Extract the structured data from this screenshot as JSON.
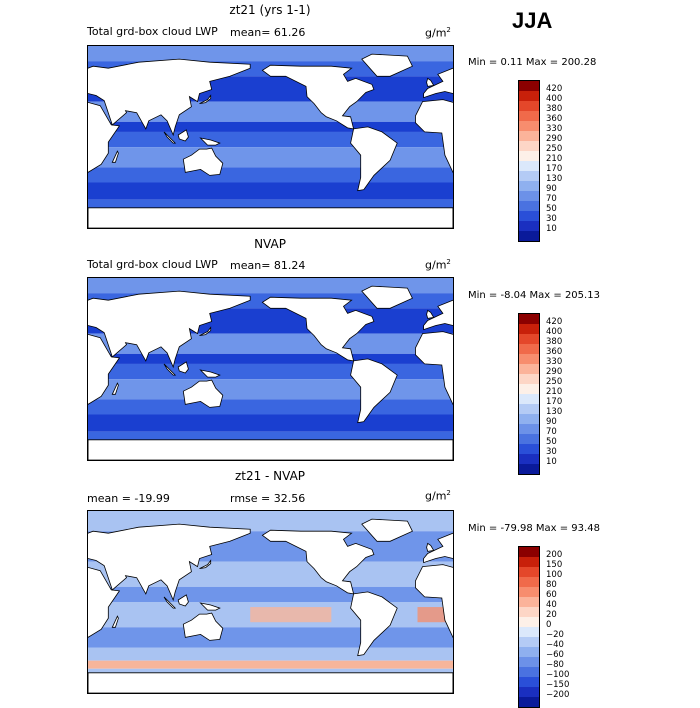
{
  "season": "JJA",
  "panels": [
    {
      "title": "zt21 (yrs 1-1)",
      "subtitle": "Total grd-box cloud LWP",
      "mean_text": "mean=  61.26",
      "units_base": "g/m",
      "units_exp": "2",
      "stats_text": "Min =    0.11 Max = 200.28",
      "colorbar": {
        "labels": [
          "420",
          "400",
          "380",
          "360",
          "330",
          "290",
          "250",
          "210",
          "170",
          "130",
          "90",
          "70",
          "50",
          "30",
          "10"
        ],
        "colors": [
          "#8b0000",
          "#c8200a",
          "#e4472a",
          "#f06a4a",
          "#f78d6e",
          "#fbb39a",
          "#fdd6c6",
          "#fdf0e8",
          "#dbe8fb",
          "#b4cbf5",
          "#8fb0ef",
          "#6c91e8",
          "#4a72e0",
          "#2a4fd8",
          "#1a2fc0",
          "#0a1a9a"
        ],
        "min": 10,
        "max": 420
      },
      "field_mean": 61.26
    },
    {
      "title": "NVAP",
      "subtitle": "Total grd-box cloud LWP",
      "mean_text": "mean=  81.24",
      "units_base": "g/m",
      "units_exp": "2",
      "stats_text": "Min =  -8.04 Max = 205.13",
      "colorbar": {
        "labels": [
          "420",
          "400",
          "380",
          "360",
          "330",
          "290",
          "250",
          "210",
          "170",
          "130",
          "90",
          "70",
          "50",
          "30",
          "10"
        ],
        "colors": [
          "#8b0000",
          "#c8200a",
          "#e4472a",
          "#f06a4a",
          "#f78d6e",
          "#fbb39a",
          "#fdd6c6",
          "#fdf0e8",
          "#dbe8fb",
          "#b4cbf5",
          "#8fb0ef",
          "#6c91e8",
          "#4a72e0",
          "#2a4fd8",
          "#1a2fc0",
          "#0a1a9a"
        ],
        "min": 10,
        "max": 420
      },
      "field_mean": 81.24
    },
    {
      "title": "zt21 - NVAP",
      "subtitle": "",
      "mean_text": "mean = -19.99",
      "rmse_text": "rmse =  32.56",
      "units_base": "g/m",
      "units_exp": "2",
      "stats_text": "Min = -79.98 Max =  93.48",
      "colorbar": {
        "labels": [
          "200",
          "150",
          "100",
          "80",
          "60",
          "40",
          "20",
          "0",
          "−20",
          "−40",
          "−60",
          "−80",
          "−100",
          "−150",
          "−200"
        ],
        "colors": [
          "#8b0000",
          "#c8200a",
          "#e4472a",
          "#f06a4a",
          "#f78d6e",
          "#fbb39a",
          "#fdd6c6",
          "#fdf0e8",
          "#dbe8fb",
          "#b4cbf5",
          "#8fb0ef",
          "#6c91e8",
          "#4a72e0",
          "#2a4fd8",
          "#1a2fc0",
          "#0a1a9a"
        ],
        "min": -200,
        "max": 200
      },
      "field_mean": -19.99
    }
  ],
  "map_colors": {
    "land": "#ffffff",
    "coast": "#000000",
    "deep": "#1a3fd0",
    "mid": "#3a66e0",
    "light": "#6f95ea",
    "pale": "#a9c3f2",
    "warm": "#f7b59a",
    "warm2": "#f2906f"
  }
}
